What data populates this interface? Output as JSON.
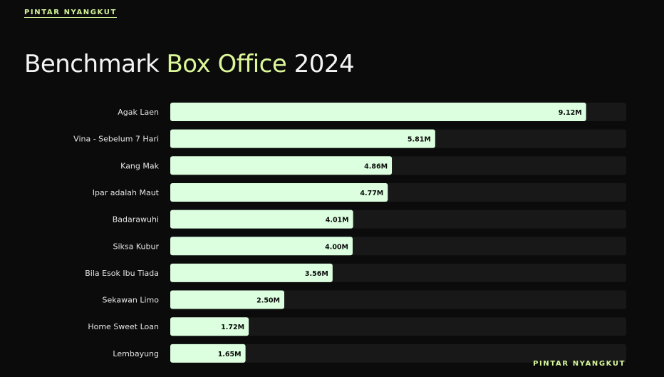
{
  "brand": "PINTAR NYANGKUT",
  "title": {
    "part1": "Benchmark",
    "highlight": "Box Office",
    "part2": "2024"
  },
  "chart_data": {
    "type": "bar",
    "orientation": "horizontal",
    "title": "Benchmark Box Office 2024",
    "categories": [
      "Agak Laen",
      "Vina - Sebelum 7 Hari",
      "Kang Mak",
      "Ipar adalah Maut",
      "Badarawuhi",
      "Siksa Kubur",
      "Bila Esok Ibu Tiada",
      "Sekawan Limo",
      "Home Sweet Loan",
      "Lembayung"
    ],
    "values": [
      9.12,
      5.81,
      4.86,
      4.77,
      4.01,
      4.0,
      3.56,
      2.5,
      1.72,
      1.65
    ],
    "labels": [
      "9.12M",
      "5.81M",
      "4.86M",
      "4.77M",
      "4.01M",
      "4.00M",
      "3.56M",
      "2.50M",
      "1.72M",
      "1.65M"
    ],
    "unit": "M",
    "xlim": [
      0,
      10
    ],
    "grid": false,
    "colors": {
      "bar": "#dcffdf",
      "track": "#181818",
      "accent": "#dcf79a"
    }
  }
}
